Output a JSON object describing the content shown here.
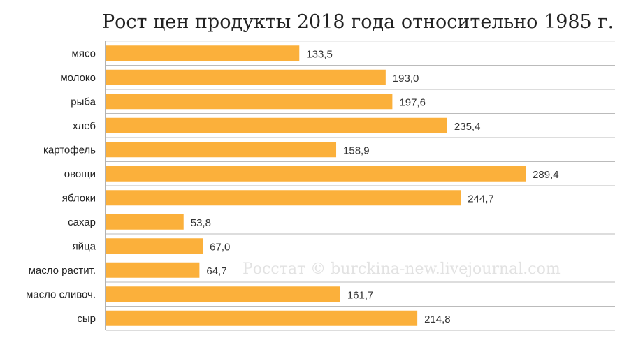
{
  "chart_data": {
    "type": "bar",
    "orientation": "horizontal",
    "title": "Рост цен продукты 2018 года относительно 1985 г.",
    "categories": [
      "мясо",
      "молоко",
      "рыба",
      "хлеб",
      "картофель",
      "овощи",
      "яблоки",
      "сахар",
      "яйца",
      "масло растит.",
      "масло сливоч.",
      "сыр"
    ],
    "values": [
      133.5,
      193.0,
      197.6,
      235.4,
      158.9,
      289.4,
      244.7,
      53.8,
      67.0,
      64.7,
      161.7,
      214.8
    ],
    "value_labels": [
      "133,5",
      "193,0",
      "197,6",
      "235,4",
      "158,9",
      "289,4",
      "244,7",
      "53,8",
      "67,0",
      "64,7",
      "161,7",
      "214,8"
    ],
    "xlim": [
      0,
      351
    ],
    "grid": "horizontal separators",
    "bar_color": "#fbb03b",
    "watermark": "Росстат © burckina-new.livejournal.com"
  }
}
